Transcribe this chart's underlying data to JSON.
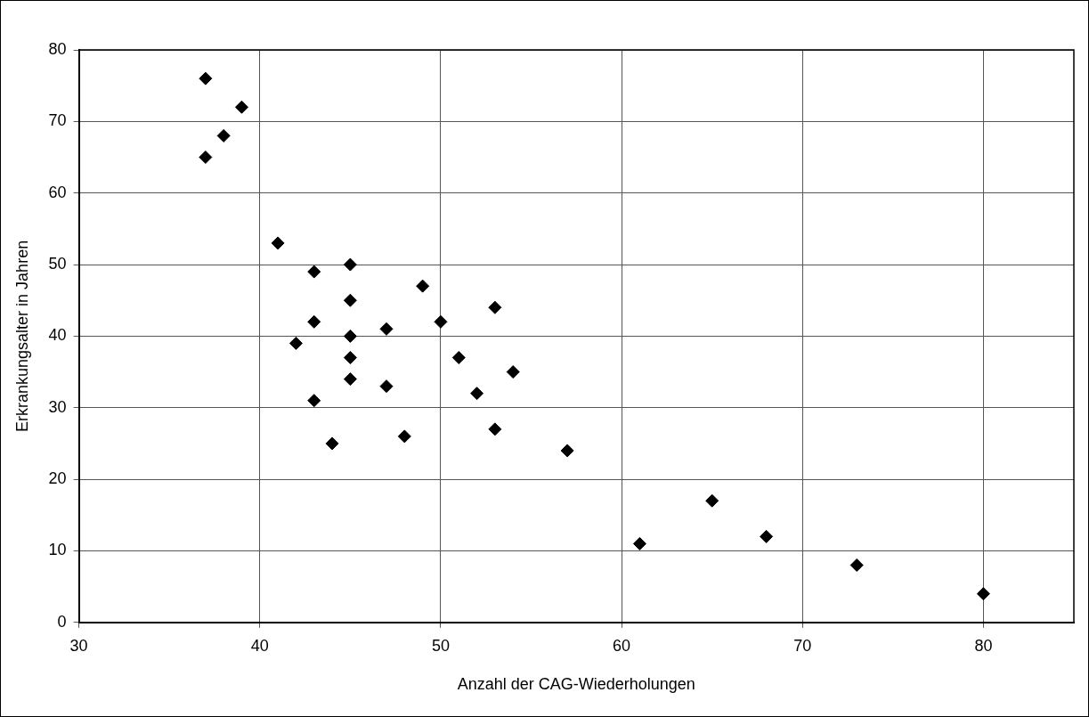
{
  "chart_data": {
    "type": "scatter",
    "xlabel": "Anzahl der CAG-Wiederholungen",
    "ylabel": "Erkrankungsalter in Jahren",
    "series": [
      {
        "color": "#000000",
        "x": [
          37,
          39,
          38,
          37,
          41,
          43,
          45,
          49,
          45,
          53,
          43,
          50,
          47,
          45,
          42,
          45,
          51,
          54,
          45,
          47,
          52,
          43,
          53,
          48,
          44,
          57,
          65,
          68,
          61,
          73,
          80
        ],
        "values": [
          76,
          72,
          68,
          65,
          53,
          49,
          50,
          47,
          45,
          44,
          42,
          42,
          41,
          40,
          39,
          37,
          37,
          35,
          34,
          33,
          32,
          31,
          27,
          26,
          25,
          24,
          17,
          12,
          11,
          8,
          4
        ]
      }
    ],
    "xlim": [
      30,
      85
    ],
    "xticks": [
      30,
      40,
      50,
      60,
      70,
      80
    ],
    "ylim": [
      0,
      80
    ],
    "yticks": [
      0,
      10,
      20,
      30,
      40,
      50,
      60,
      70,
      80
    ],
    "grid": true,
    "legend": false,
    "marker": "diamond"
  }
}
